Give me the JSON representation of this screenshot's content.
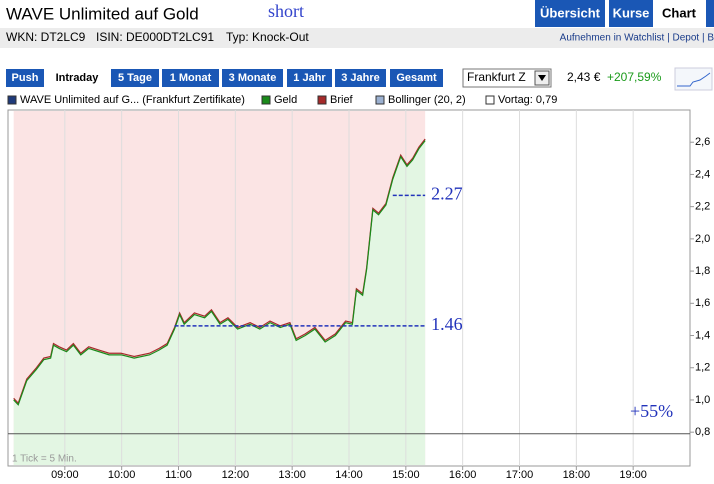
{
  "header": {
    "title": "WAVE Unlimited auf Gold",
    "note": "short"
  },
  "tabs": [
    "Übersicht",
    "Kurse",
    "Chart"
  ],
  "info": [
    "WKN: DT2LC9",
    "ISIN: DE000DT2LC91",
    "Typ: Knock-Out"
  ],
  "links": "Aufnehmen in Watchlist | Depot | B",
  "periods": [
    "Push",
    "Intraday",
    "5 Tage",
    "1 Monat",
    "3 Monate",
    "1 Jahr",
    "3 Jahre",
    "Gesamt"
  ],
  "exchange": "Frankfurt Z",
  "quote": {
    "price": "2,43 €",
    "change": "+207,59%"
  },
  "chart_data": {
    "type": "line",
    "legend_items": [
      {
        "name": "WAVE Unlimited auf G... (Frankfurt Zertifikate)",
        "color": "#1f3a7a"
      },
      {
        "name": "Bollinger (20, 2)",
        "color": "#9bb0d0"
      },
      {
        "name": "Vortag: 0,79",
        "color": "#ffffff"
      }
    ],
    "x": [
      8.1,
      8.18,
      8.33,
      8.5,
      8.63,
      8.75,
      8.8,
      8.9,
      9.03,
      9.15,
      9.28,
      9.42,
      9.6,
      9.78,
      9.99,
      10.22,
      10.49,
      10.66,
      10.8,
      10.93,
      11.02,
      11.1,
      11.28,
      11.46,
      11.58,
      11.73,
      11.87,
      12.04,
      12.26,
      12.43,
      12.61,
      12.79,
      12.96,
      13.07,
      13.23,
      13.4,
      13.58,
      13.76,
      13.94,
      14.06,
      14.13,
      14.24,
      14.31,
      14.42,
      14.52,
      14.65,
      14.77,
      14.91,
      15.02,
      15.12,
      15.23,
      15.34
    ],
    "series": [
      {
        "name": "Geld",
        "color": "#1a8a1a",
        "values": [
          1.0,
          0.97,
          1.12,
          1.19,
          1.25,
          1.26,
          1.34,
          1.32,
          1.3,
          1.34,
          1.28,
          1.32,
          1.3,
          1.28,
          1.28,
          1.26,
          1.28,
          1.31,
          1.34,
          1.44,
          1.53,
          1.47,
          1.53,
          1.51,
          1.55,
          1.47,
          1.5,
          1.44,
          1.47,
          1.44,
          1.48,
          1.45,
          1.47,
          1.37,
          1.4,
          1.44,
          1.36,
          1.4,
          1.48,
          1.47,
          1.68,
          1.65,
          1.81,
          2.18,
          2.15,
          2.21,
          2.37,
          2.51,
          2.45,
          2.49,
          2.56,
          2.61
        ]
      },
      {
        "name": "Brief",
        "color": "#a52a2a",
        "values": [
          1.01,
          0.98,
          1.13,
          1.2,
          1.26,
          1.27,
          1.35,
          1.33,
          1.31,
          1.35,
          1.29,
          1.33,
          1.31,
          1.29,
          1.29,
          1.27,
          1.29,
          1.32,
          1.35,
          1.45,
          1.54,
          1.48,
          1.54,
          1.52,
          1.56,
          1.48,
          1.51,
          1.45,
          1.48,
          1.45,
          1.49,
          1.46,
          1.48,
          1.38,
          1.41,
          1.45,
          1.37,
          1.41,
          1.49,
          1.48,
          1.69,
          1.66,
          1.82,
          2.19,
          2.16,
          2.22,
          2.38,
          2.52,
          2.46,
          2.5,
          2.57,
          2.62
        ]
      }
    ],
    "reference": 0.79,
    "annotations": [
      {
        "label": "2.27",
        "value": 2.27,
        "x_start": 14.77
      },
      {
        "label": "1.46",
        "value": 1.46,
        "x_start": 10.93
      }
    ],
    "note_right": "+55%",
    "tick_note": "1 Tick = 5 Min.",
    "xlim": [
      8,
      20
    ],
    "xticks": [
      {
        "value": 9,
        "label": "09:00"
      },
      {
        "value": 10,
        "label": "10:00"
      },
      {
        "value": 11,
        "label": "11:00"
      },
      {
        "value": 12,
        "label": "12:00"
      },
      {
        "value": 13,
        "label": "13:00"
      },
      {
        "value": 14,
        "label": "14:00"
      },
      {
        "value": 15,
        "label": "15:00"
      },
      {
        "value": 16,
        "label": "16:00"
      },
      {
        "value": 17,
        "label": "17:00"
      },
      {
        "value": 18,
        "label": "18:00"
      },
      {
        "value": 19,
        "label": "19:00"
      }
    ],
    "ylim": [
      0.59,
      2.8
    ],
    "yticks": [
      {
        "value": 0.8,
        "label": "0,8"
      },
      {
        "value": 1,
        "label": "1,0"
      },
      {
        "value": 1.2,
        "label": "1,2"
      },
      {
        "value": 1.4,
        "label": "1,4"
      },
      {
        "value": 1.6,
        "label": "1,6"
      },
      {
        "value": 1.8,
        "label": "1,8"
      },
      {
        "value": 2,
        "label": "2,0"
      },
      {
        "value": 2.2,
        "label": "2,2"
      },
      {
        "value": 2.4,
        "label": "2,4"
      },
      {
        "value": 2.6,
        "label": "2,6"
      }
    ],
    "grid": "x"
  }
}
